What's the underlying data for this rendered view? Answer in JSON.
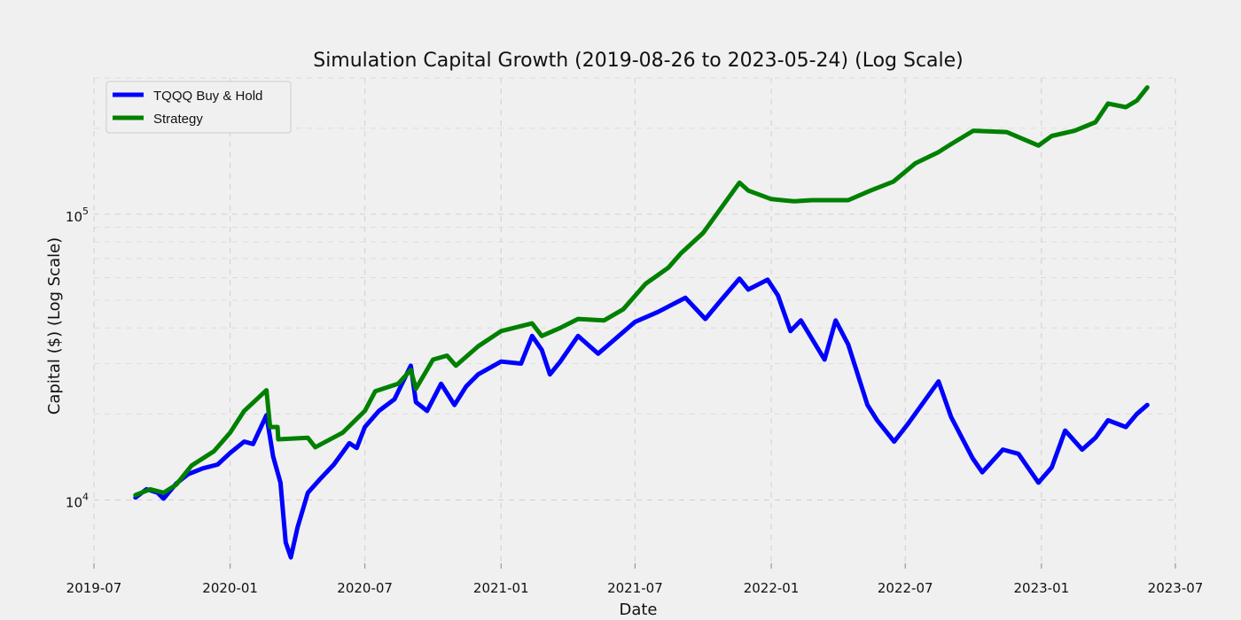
{
  "chart_data": {
    "type": "line",
    "title": "Simulation Capital Growth (2019-08-26 to 2023-05-24) (Log Scale)",
    "xlabel": "Date",
    "ylabel": "Capital ($) (Log Scale)",
    "yscale": "log",
    "ylim": [
      6000,
      300000
    ],
    "xlim": [
      "2019-07-01",
      "2023-07-01"
    ],
    "grid": true,
    "legend_position": "top-left",
    "x_ticks": [
      "2019-07",
      "2020-01",
      "2020-07",
      "2021-01",
      "2021-07",
      "2022-01",
      "2022-07",
      "2023-01",
      "2023-07"
    ],
    "y_ticks": [
      {
        "value": 10000,
        "base": "10",
        "exp": "4"
      },
      {
        "value": 100000,
        "base": "10",
        "exp": "5"
      }
    ],
    "series": [
      {
        "name": "TQQQ Buy & Hold",
        "color": "#0000ff",
        "points": [
          [
            "2019-08-26",
            10200
          ],
          [
            "2019-09-10",
            10900
          ],
          [
            "2019-09-25",
            10600
          ],
          [
            "2019-10-03",
            10100
          ],
          [
            "2019-10-20",
            11400
          ],
          [
            "2019-11-05",
            12300
          ],
          [
            "2019-11-25",
            12900
          ],
          [
            "2019-12-15",
            13300
          ],
          [
            "2020-01-01",
            14600
          ],
          [
            "2020-01-20",
            16000
          ],
          [
            "2020-02-01",
            15700
          ],
          [
            "2020-02-19",
            19800
          ],
          [
            "2020-02-28",
            14200
          ],
          [
            "2020-03-09",
            11500
          ],
          [
            "2020-03-16",
            7100
          ],
          [
            "2020-03-23",
            6300
          ],
          [
            "2020-04-01",
            8000
          ],
          [
            "2020-04-15",
            10600
          ],
          [
            "2020-05-01",
            11800
          ],
          [
            "2020-05-20",
            13300
          ],
          [
            "2020-06-10",
            15800
          ],
          [
            "2020-06-20",
            15200
          ],
          [
            "2020-07-01",
            18000
          ],
          [
            "2020-07-20",
            20500
          ],
          [
            "2020-08-10",
            22500
          ],
          [
            "2020-09-01",
            29500
          ],
          [
            "2020-09-08",
            22000
          ],
          [
            "2020-09-23",
            20500
          ],
          [
            "2020-10-12",
            25500
          ],
          [
            "2020-10-30",
            21500
          ],
          [
            "2020-11-15",
            25000
          ],
          [
            "2020-12-01",
            27500
          ],
          [
            "2021-01-01",
            30500
          ],
          [
            "2021-01-28",
            30000
          ],
          [
            "2021-02-12",
            37500
          ],
          [
            "2021-02-25",
            33500
          ],
          [
            "2021-03-08",
            27500
          ],
          [
            "2021-03-22",
            30500
          ],
          [
            "2021-04-15",
            37500
          ],
          [
            "2021-05-12",
            32500
          ],
          [
            "2021-06-01",
            36000
          ],
          [
            "2021-07-01",
            42000
          ],
          [
            "2021-08-01",
            45500
          ],
          [
            "2021-09-07",
            51000
          ],
          [
            "2021-10-04",
            43000
          ],
          [
            "2021-10-25",
            50000
          ],
          [
            "2021-11-19",
            59500
          ],
          [
            "2021-12-01",
            54500
          ],
          [
            "2021-12-27",
            59000
          ],
          [
            "2022-01-10",
            52000
          ],
          [
            "2022-01-27",
            39000
          ],
          [
            "2022-02-10",
            42500
          ],
          [
            "2022-03-14",
            31000
          ],
          [
            "2022-03-29",
            42500
          ],
          [
            "2022-04-15",
            35000
          ],
          [
            "2022-05-11",
            21500
          ],
          [
            "2022-05-24",
            19000
          ],
          [
            "2022-06-16",
            16000
          ],
          [
            "2022-07-05",
            18500
          ],
          [
            "2022-08-15",
            26000
          ],
          [
            "2022-09-01",
            19500
          ],
          [
            "2022-09-30",
            14000
          ],
          [
            "2022-10-13",
            12500
          ],
          [
            "2022-11-10",
            15000
          ],
          [
            "2022-12-01",
            14500
          ],
          [
            "2022-12-28",
            11500
          ],
          [
            "2023-01-15",
            13000
          ],
          [
            "2023-02-02",
            17500
          ],
          [
            "2023-02-25",
            15000
          ],
          [
            "2023-03-15",
            16500
          ],
          [
            "2023-04-01",
            19000
          ],
          [
            "2023-04-25",
            18000
          ],
          [
            "2023-05-10",
            20000
          ],
          [
            "2023-05-24",
            21500
          ]
        ]
      },
      {
        "name": "Strategy",
        "color": "#008000",
        "points": [
          [
            "2019-08-26",
            10400
          ],
          [
            "2019-09-15",
            10900
          ],
          [
            "2019-10-03",
            10600
          ],
          [
            "2019-10-20",
            11300
          ],
          [
            "2019-11-10",
            13200
          ],
          [
            "2019-12-10",
            14800
          ],
          [
            "2020-01-01",
            17200
          ],
          [
            "2020-01-20",
            20500
          ],
          [
            "2020-02-19",
            24200
          ],
          [
            "2020-02-24",
            18000
          ],
          [
            "2020-03-05",
            18000
          ],
          [
            "2020-03-06",
            16300
          ],
          [
            "2020-04-15",
            16500
          ],
          [
            "2020-04-25",
            15300
          ],
          [
            "2020-06-01",
            17200
          ],
          [
            "2020-07-01",
            20500
          ],
          [
            "2020-07-15",
            24000
          ],
          [
            "2020-08-15",
            25500
          ],
          [
            "2020-09-01",
            28500
          ],
          [
            "2020-09-08",
            24500
          ],
          [
            "2020-10-01",
            31000
          ],
          [
            "2020-10-20",
            32000
          ],
          [
            "2020-11-01",
            29500
          ],
          [
            "2020-12-01",
            34500
          ],
          [
            "2021-01-01",
            39000
          ],
          [
            "2021-02-12",
            41500
          ],
          [
            "2021-02-25",
            37500
          ],
          [
            "2021-03-22",
            40000
          ],
          [
            "2021-04-15",
            43000
          ],
          [
            "2021-05-20",
            42500
          ],
          [
            "2021-06-15",
            46500
          ],
          [
            "2021-07-15",
            57000
          ],
          [
            "2021-08-15",
            65000
          ],
          [
            "2021-09-01",
            73000
          ],
          [
            "2021-10-01",
            86000
          ],
          [
            "2021-11-19",
            129000
          ],
          [
            "2021-12-01",
            121000
          ],
          [
            "2022-01-01",
            113000
          ],
          [
            "2022-02-01",
            111000
          ],
          [
            "2022-02-25",
            112000
          ],
          [
            "2022-04-15",
            112000
          ],
          [
            "2022-05-15",
            121000
          ],
          [
            "2022-06-15",
            130000
          ],
          [
            "2022-07-15",
            151000
          ],
          [
            "2022-08-15",
            165000
          ],
          [
            "2022-09-01",
            176000
          ],
          [
            "2022-10-01",
            196000
          ],
          [
            "2022-11-15",
            194000
          ],
          [
            "2022-12-28",
            174000
          ],
          [
            "2023-01-15",
            188000
          ],
          [
            "2023-02-15",
            196000
          ],
          [
            "2023-03-15",
            210000
          ],
          [
            "2023-04-01",
            244000
          ],
          [
            "2023-04-25",
            237000
          ],
          [
            "2023-05-10",
            250000
          ],
          [
            "2023-05-24",
            278000
          ]
        ]
      }
    ]
  }
}
